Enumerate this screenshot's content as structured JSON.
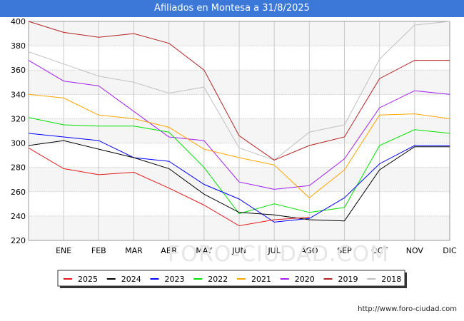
{
  "chart_data": {
    "type": "line",
    "title": "Afiliados en Montesa a 31/8/2025",
    "categories": [
      "",
      "ENE",
      "FEB",
      "MAR",
      "ABR",
      "MAY",
      "JUN",
      "JUL",
      "AGO",
      "SEP",
      "OCT",
      "NOV",
      "DIC"
    ],
    "ylim": [
      220,
      400
    ],
    "yticks": [
      220,
      240,
      260,
      280,
      300,
      320,
      340,
      360,
      380,
      400
    ],
    "xlabel": "",
    "ylabel": "",
    "grid": true,
    "watermark": "FORO-CIUDAD.COM",
    "legend_position": "bottom",
    "series": [
      {
        "name": "2025",
        "color": "#e31a1c",
        "values": [
          296,
          279,
          274,
          276,
          263,
          249,
          232,
          237,
          239,
          null,
          null,
          null,
          null
        ]
      },
      {
        "name": "2024",
        "color": "#000000",
        "values": [
          298,
          302,
          295,
          288,
          279,
          258,
          243,
          241,
          237,
          236,
          278,
          297,
          297
        ]
      },
      {
        "name": "2023",
        "color": "#0000ff",
        "values": [
          308,
          305,
          302,
          288,
          285,
          266,
          254,
          235,
          238,
          255,
          283,
          298,
          298
        ]
      },
      {
        "name": "2022",
        "color": "#00e000",
        "values": [
          321,
          315,
          314,
          314,
          309,
          280,
          242,
          250,
          243,
          247,
          298,
          311,
          308
        ]
      },
      {
        "name": "2021",
        "color": "#ffa500",
        "values": [
          340,
          337,
          323,
          320,
          313,
          295,
          288,
          282,
          255,
          278,
          323,
          324,
          320
        ]
      },
      {
        "name": "2020",
        "color": "#a020f0",
        "values": [
          368,
          351,
          347,
          326,
          305,
          302,
          268,
          262,
          265,
          287,
          329,
          343,
          340
        ]
      },
      {
        "name": "2019",
        "color": "#b22222",
        "values": [
          400,
          391,
          387,
          390,
          382,
          360,
          306,
          286,
          298,
          305,
          353,
          368,
          368
        ]
      },
      {
        "name": "2018",
        "color": "#c0c0c0",
        "values": [
          375,
          365,
          355,
          350,
          341,
          346,
          296,
          286,
          309,
          315,
          369,
          397,
          400
        ]
      }
    ]
  },
  "footer": {
    "url": "http://www.foro-ciudad.com"
  }
}
